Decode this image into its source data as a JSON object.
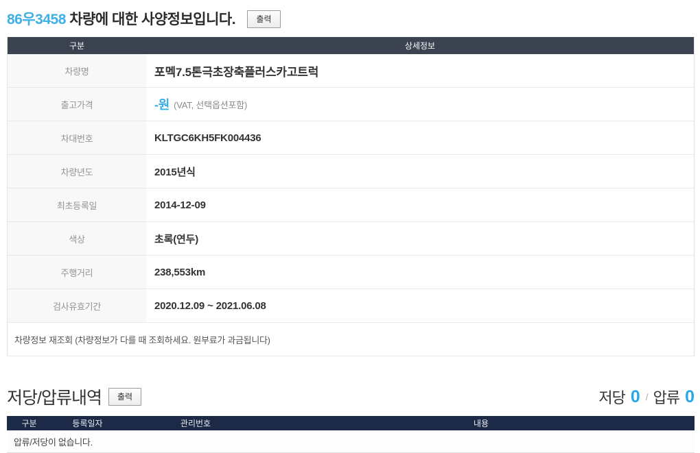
{
  "colors": {
    "accent_blue": "#35ade4",
    "title_plate_blue": "#3fb0e6",
    "spec_header_bg": "#3b4250",
    "lien_header_bg": "#1d2a47"
  },
  "header": {
    "plate": "86우3458",
    "title_rest": " 차량에 대한 사양정보입니다.",
    "print_label": "출력"
  },
  "spec_table": {
    "col_headers": {
      "category": "구분",
      "detail": "상세정보"
    },
    "rows": [
      {
        "label": "차량명",
        "value": "포멕7.5톤극초장축플러스카고트럭"
      },
      {
        "label": "출고가격",
        "value": "-원",
        "value_note": "(VAT, 선택옵션포함)"
      },
      {
        "label": "차대번호",
        "value": "KLTGC6KH5FK004436"
      },
      {
        "label": "차량년도",
        "value": "2015년식"
      },
      {
        "label": "최초등록일",
        "value": "2014-12-09"
      },
      {
        "label": "색상",
        "value": "초록(연두)"
      },
      {
        "label": "주행거리",
        "value": "238,553km"
      },
      {
        "label": "검사유효기간",
        "value": "2020.12.09 ~ 2021.06.08"
      }
    ],
    "requery_note": "차량정보 재조회 (차량정보가 다를 때 조회하세요. 원부료가 과금됩니다)"
  },
  "lien_section": {
    "title": "저당/압류내역",
    "print_label": "출력",
    "summary": {
      "mortgage_label": "저당",
      "mortgage_count": "0",
      "separator": "/",
      "seizure_label": "압류",
      "seizure_count": "0"
    },
    "table": {
      "col_headers": [
        "구분",
        "등록일자",
        "관리번호",
        "내용"
      ],
      "empty_message": "압류/저당이 없습니다."
    }
  }
}
